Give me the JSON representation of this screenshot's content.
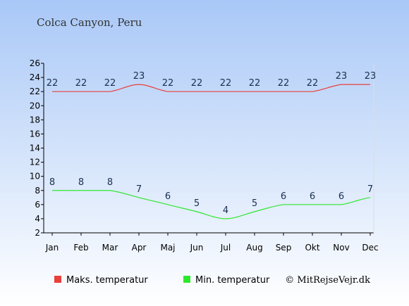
{
  "chart_data": {
    "type": "line",
    "title": "Colca Canyon, Peru",
    "categories": [
      "Jan",
      "Feb",
      "Mar",
      "Apr",
      "Maj",
      "Jun",
      "Jul",
      "Aug",
      "Sep",
      "Okt",
      "Nov",
      "Dec"
    ],
    "series": [
      {
        "name": "Maks. temperatur",
        "color": "#e8403a",
        "values": [
          22,
          22,
          22,
          23,
          22,
          22,
          22,
          22,
          22,
          22,
          23,
          23
        ]
      },
      {
        "name": "Min. temperatur",
        "color": "#2ee82e",
        "values": [
          8,
          8,
          8,
          7,
          6,
          5,
          4,
          5,
          6,
          6,
          6,
          7
        ]
      }
    ],
    "ylim": [
      2,
      26
    ],
    "yticks": [
      "2",
      "4",
      "6",
      "8",
      "10",
      "12",
      "14",
      "16",
      "18",
      "20",
      "22",
      "24",
      "26"
    ],
    "grid": false,
    "legend": "bottom"
  },
  "copyright": "© MitRejseVejr.dk"
}
